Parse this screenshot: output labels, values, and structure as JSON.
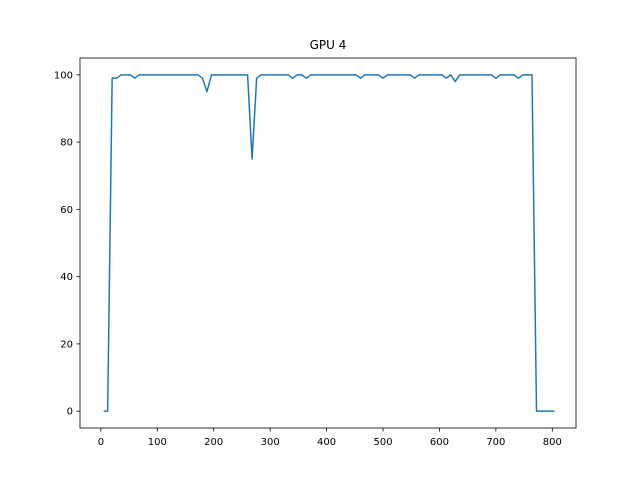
{
  "chart_data": {
    "type": "line",
    "title": "GPU 4",
    "xlabel": "",
    "ylabel": "",
    "xlim": [
      -37,
      842
    ],
    "ylim": [
      -5,
      105
    ],
    "xticks": [
      0,
      100,
      200,
      300,
      400,
      500,
      600,
      700,
      800
    ],
    "yticks": [
      0,
      20,
      40,
      60,
      80,
      100
    ],
    "grid": false,
    "series": [
      {
        "color": "#1f77b4",
        "x": [
          5,
          12,
          20,
          28,
          36,
          44,
          52,
          60,
          68,
          76,
          84,
          92,
          100,
          108,
          116,
          124,
          132,
          140,
          148,
          156,
          164,
          172,
          180,
          188,
          196,
          204,
          212,
          220,
          228,
          236,
          244,
          252,
          260,
          268,
          276,
          284,
          292,
          300,
          308,
          316,
          324,
          332,
          340,
          348,
          356,
          364,
          372,
          380,
          388,
          396,
          404,
          412,
          420,
          428,
          436,
          444,
          452,
          460,
          468,
          476,
          484,
          492,
          500,
          508,
          516,
          524,
          532,
          540,
          548,
          556,
          564,
          572,
          580,
          588,
          596,
          604,
          612,
          620,
          628,
          636,
          644,
          652,
          660,
          668,
          676,
          684,
          692,
          700,
          708,
          716,
          724,
          732,
          740,
          748,
          756,
          764,
          772,
          780,
          788,
          796,
          804
        ],
        "y": [
          0,
          0,
          99,
          99,
          100,
          100,
          100,
          99,
          100,
          100,
          100,
          100,
          100,
          100,
          100,
          100,
          100,
          100,
          100,
          100,
          100,
          100,
          99,
          95,
          100,
          100,
          100,
          100,
          100,
          100,
          100,
          100,
          100,
          75,
          99,
          100,
          100,
          100,
          100,
          100,
          100,
          100,
          99,
          100,
          100,
          99,
          100,
          100,
          100,
          100,
          100,
          100,
          100,
          100,
          100,
          100,
          100,
          99,
          100,
          100,
          100,
          100,
          99,
          100,
          100,
          100,
          100,
          100,
          100,
          99,
          100,
          100,
          100,
          100,
          100,
          100,
          99,
          100,
          98,
          100,
          100,
          100,
          100,
          100,
          100,
          100,
          100,
          99,
          100,
          100,
          100,
          100,
          99,
          100,
          100,
          100,
          0,
          0,
          0,
          0,
          0
        ]
      }
    ]
  }
}
